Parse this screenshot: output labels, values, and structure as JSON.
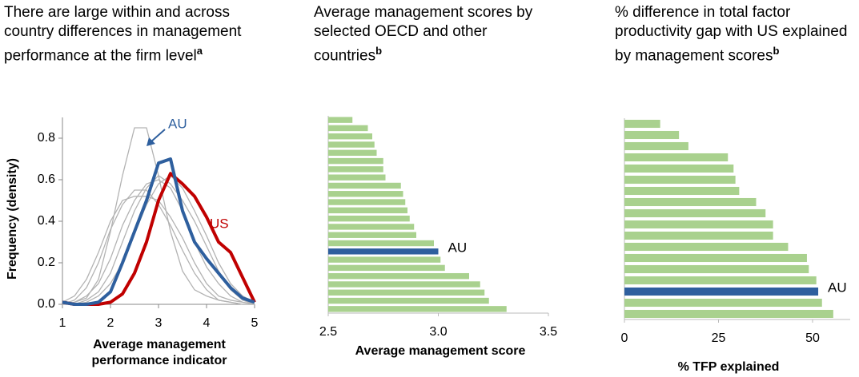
{
  "chart_data": [
    {
      "type": "line",
      "title": "There are large within and across country differences in management performance at the firm level",
      "title_note": "a",
      "x_label": "Average management performance indicator",
      "y_label": "Frequency (density)",
      "x": [
        1,
        1.25,
        1.5,
        1.75,
        2,
        2.25,
        2.5,
        2.75,
        3,
        3.25,
        3.5,
        3.75,
        4,
        4.25,
        4.5,
        4.75,
        5
      ],
      "xlim": [
        1,
        5
      ],
      "xticks": [
        1,
        2,
        3,
        4,
        5
      ],
      "ylim": [
        0,
        0.9
      ],
      "yticks": [
        {
          "value": 0,
          "label": "0.0"
        },
        {
          "value": 0.2,
          "label": "0.2"
        },
        {
          "value": 0.4,
          "label": "0.4"
        },
        {
          "value": 0.6,
          "label": "0.6"
        },
        {
          "value": 0.8,
          "label": "0.8"
        }
      ],
      "series": [
        {
          "color": "#b3b3b3",
          "values": [
            0,
            0.01,
            0.03,
            0.12,
            0.35,
            0.62,
            0.85,
            0.85,
            0.62,
            0.35,
            0.16,
            0.07,
            0.04,
            0.02,
            0.01,
            0,
            0
          ]
        },
        {
          "color": "#b3b3b3",
          "values": [
            0.01,
            0.04,
            0.12,
            0.25,
            0.4,
            0.5,
            0.52,
            0.52,
            0.5,
            0.42,
            0.32,
            0.2,
            0.1,
            0.04,
            0.02,
            0.01,
            0
          ]
        },
        {
          "color": "#b3b3b3",
          "values": [
            0,
            0.01,
            0.04,
            0.1,
            0.22,
            0.38,
            0.5,
            0.58,
            0.6,
            0.56,
            0.45,
            0.3,
            0.18,
            0.1,
            0.04,
            0.01,
            0
          ]
        },
        {
          "color": "#b3b3b3",
          "values": [
            0,
            0,
            0.02,
            0.06,
            0.15,
            0.3,
            0.45,
            0.56,
            0.62,
            0.58,
            0.5,
            0.4,
            0.28,
            0.16,
            0.07,
            0.02,
            0
          ]
        },
        {
          "color": "#b3b3b3",
          "values": [
            0,
            0.02,
            0.08,
            0.2,
            0.36,
            0.48,
            0.55,
            0.55,
            0.48,
            0.38,
            0.26,
            0.15,
            0.07,
            0.02,
            0.01,
            0,
            0
          ]
        },
        {
          "color": "#b3b3b3",
          "values": [
            0,
            0,
            0.01,
            0.04,
            0.1,
            0.2,
            0.34,
            0.48,
            0.58,
            0.62,
            0.56,
            0.45,
            0.33,
            0.2,
            0.1,
            0.04,
            0.01
          ]
        },
        {
          "name": "US",
          "color": "#c00000",
          "values": [
            0.01,
            0,
            0,
            0,
            0.01,
            0.05,
            0.15,
            0.3,
            0.5,
            0.63,
            0.58,
            0.52,
            0.42,
            0.3,
            0.25,
            0.13,
            0.01
          ]
        },
        {
          "name": "AU",
          "color": "#2e5f9e",
          "values": [
            0.01,
            0,
            0,
            0.01,
            0.06,
            0.2,
            0.35,
            0.5,
            0.68,
            0.7,
            0.45,
            0.3,
            0.22,
            0.15,
            0.08,
            0.03,
            0.01
          ]
        }
      ]
    },
    {
      "type": "hbar",
      "title": "Average management scores by selected OECD and other countries",
      "title_note": "b",
      "x_label": "Average management score",
      "categories": [
        null,
        null,
        null,
        null,
        null,
        null,
        null,
        null,
        null,
        null,
        null,
        null,
        null,
        null,
        null,
        null,
        "AU",
        null,
        null,
        null,
        null,
        null,
        null,
        null
      ],
      "values": [
        2.61,
        2.68,
        2.7,
        2.71,
        2.72,
        2.75,
        2.75,
        2.76,
        2.83,
        2.84,
        2.85,
        2.86,
        2.87,
        2.89,
        2.9,
        2.98,
        3.0,
        3.01,
        3.03,
        3.14,
        3.19,
        3.21,
        3.23,
        3.31
      ],
      "colors": [
        "#a9d18e",
        "#a9d18e",
        "#a9d18e",
        "#a9d18e",
        "#a9d18e",
        "#a9d18e",
        "#a9d18e",
        "#a9d18e",
        "#a9d18e",
        "#a9d18e",
        "#a9d18e",
        "#a9d18e",
        "#a9d18e",
        "#a9d18e",
        "#a9d18e",
        "#a9d18e",
        "#2e5f9e",
        "#a9d18e",
        "#a9d18e",
        "#a9d18e",
        "#a9d18e",
        "#a9d18e",
        "#a9d18e",
        "#a9d18e"
      ],
      "xlim": [
        2.5,
        3.5
      ],
      "xticks": [
        2.5,
        {
          "value": 3,
          "label": "3.0"
        },
        3.5
      ]
    },
    {
      "type": "hbar",
      "title": "% difference in total factor productivity gap with US explained by management scores",
      "title_note": "b",
      "x_label": "% TFP explained",
      "categories": [
        null,
        null,
        null,
        null,
        null,
        null,
        null,
        null,
        null,
        null,
        null,
        null,
        null,
        null,
        null,
        "AU",
        null,
        null
      ],
      "values": [
        9.5,
        14.5,
        17,
        27.5,
        29,
        29.5,
        30.5,
        35,
        37.5,
        39.5,
        39.5,
        43.5,
        48.5,
        49,
        51,
        51.5,
        52.5,
        55.5
      ],
      "colors": [
        "#a9d18e",
        "#a9d18e",
        "#a9d18e",
        "#a9d18e",
        "#a9d18e",
        "#a9d18e",
        "#a9d18e",
        "#a9d18e",
        "#a9d18e",
        "#a9d18e",
        "#a9d18e",
        "#a9d18e",
        "#a9d18e",
        "#a9d18e",
        "#a9d18e",
        "#2e5f9e",
        "#a9d18e",
        "#a9d18e"
      ],
      "xlim": [
        0,
        60
      ],
      "xticks": [
        0,
        25,
        50
      ]
    }
  ]
}
